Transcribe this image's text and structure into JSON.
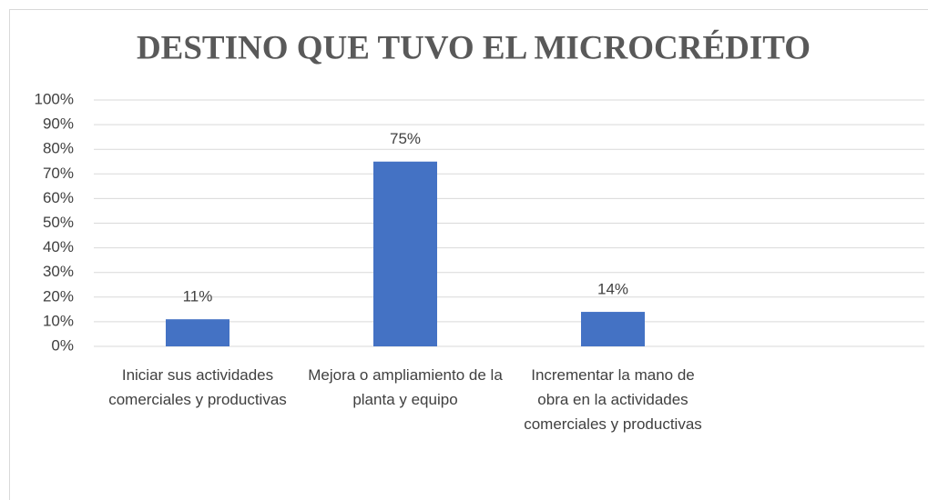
{
  "chart_data": {
    "type": "bar",
    "title": "DESTINO QUE TUVO EL MICROCRÉDITO",
    "categories": [
      "Iniciar sus actividades comerciales y productivas",
      "Mejora o ampliamiento de la planta y equipo",
      "Incrementar la mano de obra en la actividades comerciales y productivas",
      null
    ],
    "values": [
      11,
      75,
      14,
      null
    ],
    "value_labels": [
      "11%",
      "75%",
      "14%",
      null
    ],
    "color": "#4472c4",
    "ylim": [
      0,
      100
    ],
    "yticks": [
      {
        "value": 0,
        "label": "0%"
      },
      {
        "value": 10,
        "label": "10%"
      },
      {
        "value": 20,
        "label": "20%"
      },
      {
        "value": 30,
        "label": "30%"
      },
      {
        "value": 40,
        "label": "40%"
      },
      {
        "value": 50,
        "label": "50%"
      },
      {
        "value": 60,
        "label": "60%"
      },
      {
        "value": 70,
        "label": "70%"
      },
      {
        "value": 80,
        "label": "80%"
      },
      {
        "value": 90,
        "label": "90%"
      },
      {
        "value": 100,
        "label": "100%"
      }
    ],
    "grid": true
  }
}
